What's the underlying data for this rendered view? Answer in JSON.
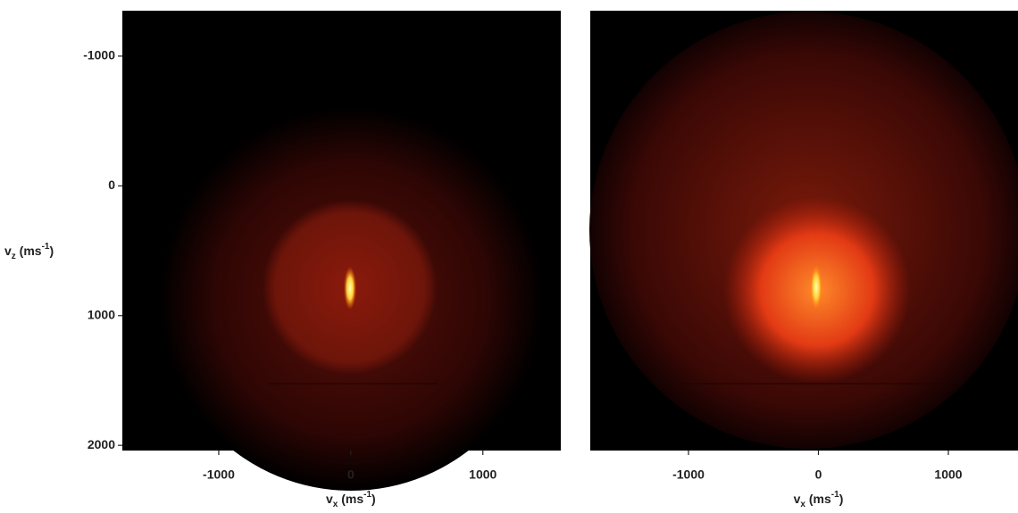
{
  "chart_data": [
    {
      "type": "image",
      "xlabel_parts": [
        "v",
        "x",
        " (ms",
        "-1",
        ")"
      ],
      "ylabel_parts": [
        "v",
        "z",
        " (ms",
        "-1",
        ")"
      ],
      "xlim": [
        -1730,
        1590
      ],
      "ylim": [
        -1350,
        2040
      ],
      "y_inverted": true,
      "xticks": [
        -1000,
        0,
        1000
      ],
      "yticks": [
        -1000,
        0,
        1000,
        2000
      ]
    },
    {
      "type": "image",
      "xlabel_parts": [
        "v",
        "x",
        " (ms",
        "-1",
        ")"
      ],
      "xlim": [
        -1756,
        1536
      ],
      "ylim": [
        -1350,
        2040
      ],
      "y_inverted": true,
      "xticks": [
        -1000,
        0,
        1000
      ]
    }
  ]
}
